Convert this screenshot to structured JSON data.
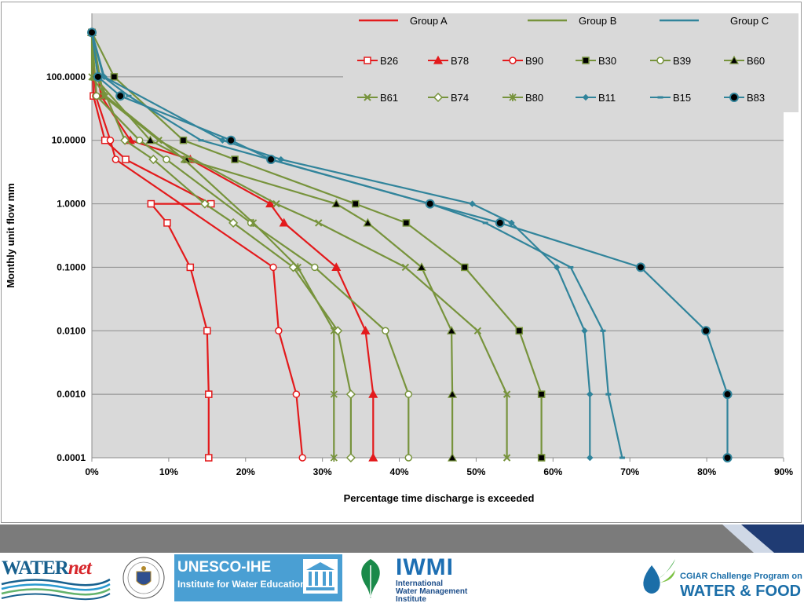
{
  "chart_data": {
    "type": "line",
    "title": "",
    "xlabel": "Percentage time discharge is exceeded",
    "ylabel": "Monthly unit flow mm",
    "xlim": [
      0,
      90
    ],
    "x_ticks": [
      0,
      10,
      20,
      30,
      40,
      50,
      60,
      70,
      80,
      90
    ],
    "x_tick_labels": [
      "0%",
      "10%",
      "20%",
      "30%",
      "40%",
      "50%",
      "60%",
      "70%",
      "80%",
      "90%"
    ],
    "y_scale": "log",
    "ylim": [
      0.0001,
      1000
    ],
    "y_ticks": [
      0.0001,
      0.001,
      0.01,
      0.1,
      1,
      10,
      100
    ],
    "y_tick_labels": [
      "0.0001",
      "0.0010",
      "0.0100",
      "0.1000",
      "1.0000",
      "10.0000",
      "100.0000"
    ],
    "grid": "horizontal",
    "legend_position": "top-right",
    "groups": [
      {
        "name": "Group A",
        "color": "#e31a1c"
      },
      {
        "name": "Group B",
        "color": "#77933c"
      },
      {
        "name": "Group C",
        "color": "#31849b"
      }
    ],
    "series": [
      {
        "name": "B26",
        "group": "Group A",
        "marker": "square-open",
        "color": "#e31a1c",
        "points": [
          [
            0,
            500
          ],
          [
            0.2,
            50
          ],
          [
            1.7,
            10
          ],
          [
            4.4,
            5
          ],
          [
            15.5,
            1
          ],
          [
            7.7,
            1
          ],
          [
            9.8,
            0.5
          ],
          [
            12.8,
            0.1
          ],
          [
            15,
            0.01
          ],
          [
            15.2,
            0.001
          ],
          [
            15.2,
            0.0001
          ]
        ]
      },
      {
        "name": "B78",
        "group": "Group A",
        "marker": "triangle-filled",
        "color": "#e31a1c",
        "points": [
          [
            0,
            500
          ],
          [
            1.2,
            50
          ],
          [
            5,
            10
          ],
          [
            12.8,
            5
          ],
          [
            23.2,
            1
          ],
          [
            25,
            0.5
          ],
          [
            31.8,
            0.1
          ],
          [
            35.6,
            0.01
          ],
          [
            36.6,
            0.001
          ],
          [
            36.6,
            0.0001
          ]
        ]
      },
      {
        "name": "B90",
        "group": "Group A",
        "marker": "circle-open",
        "color": "#e31a1c",
        "points": [
          [
            0,
            500
          ],
          [
            0.5,
            50
          ],
          [
            2.4,
            10
          ],
          [
            3.1,
            5
          ],
          [
            23.6,
            0.1
          ],
          [
            24.3,
            0.01
          ],
          [
            26.6,
            0.001
          ],
          [
            27.4,
            0.0001
          ]
        ]
      },
      {
        "name": "B30",
        "group": "Group B",
        "marker": "square-filled",
        "color": "#77933c",
        "points": [
          [
            0,
            500
          ],
          [
            2.9,
            100
          ],
          [
            11.9,
            10
          ],
          [
            18.6,
            5
          ],
          [
            34.3,
            1
          ],
          [
            40.9,
            0.5
          ],
          [
            48.5,
            0.1
          ],
          [
            55.6,
            0.01
          ],
          [
            58.5,
            0.001
          ],
          [
            58.5,
            0.0001
          ]
        ]
      },
      {
        "name": "B39",
        "group": "Group B",
        "marker": "circle-open",
        "color": "#77933c",
        "points": [
          [
            0,
            500
          ],
          [
            0.6,
            50
          ],
          [
            6.2,
            10
          ],
          [
            9.7,
            5
          ],
          [
            20.7,
            0.5
          ],
          [
            29,
            0.1
          ],
          [
            38.2,
            0.01
          ],
          [
            41.2,
            0.001
          ],
          [
            41.2,
            0.0001
          ]
        ]
      },
      {
        "name": "B60",
        "group": "Group B",
        "marker": "triangle-filled",
        "color": "#77933c",
        "points": [
          [
            0,
            500
          ],
          [
            0.3,
            100
          ],
          [
            7.6,
            10
          ],
          [
            12.3,
            5
          ],
          [
            31.8,
            1
          ],
          [
            35.9,
            0.5
          ],
          [
            42.9,
            0.1
          ],
          [
            46.8,
            0.01
          ],
          [
            46.9,
            0.001
          ],
          [
            46.9,
            0.0001
          ]
        ]
      },
      {
        "name": "B61",
        "group": "Group B",
        "marker": "x",
        "color": "#77933c",
        "points": [
          [
            0,
            500
          ],
          [
            1.5,
            50
          ],
          [
            8.7,
            10
          ],
          [
            24,
            1
          ],
          [
            29.5,
            0.5
          ],
          [
            40.8,
            0.1
          ],
          [
            50.2,
            0.01
          ],
          [
            54,
            0.001
          ],
          [
            54,
            0.0001
          ]
        ]
      },
      {
        "name": "B74",
        "group": "Group B",
        "marker": "diamond-open",
        "color": "#77933c",
        "points": [
          [
            0,
            500
          ],
          [
            0.8,
            100
          ],
          [
            4.3,
            10
          ],
          [
            8,
            5
          ],
          [
            14.7,
            1
          ],
          [
            18.4,
            0.5
          ],
          [
            26.2,
            0.1
          ],
          [
            32,
            0.01
          ],
          [
            33.7,
            0.001
          ],
          [
            33.7,
            0.0001
          ]
        ]
      },
      {
        "name": "B80",
        "group": "Group B",
        "marker": "asterisk",
        "color": "#77933c",
        "points": [
          [
            0,
            500
          ],
          [
            0,
            100
          ],
          [
            1.8,
            50
          ],
          [
            12,
            5
          ],
          [
            21,
            0.5
          ],
          [
            26.8,
            0.1
          ],
          [
            31.5,
            0.01
          ],
          [
            31.5,
            0.001
          ],
          [
            31.5,
            0.0001
          ]
        ]
      },
      {
        "name": "B11",
        "group": "Group C",
        "marker": "diamond-small",
        "color": "#31849b",
        "points": [
          [
            0,
            500
          ],
          [
            1.6,
            100
          ],
          [
            17,
            10
          ],
          [
            24.6,
            5
          ],
          [
            49.5,
            1
          ],
          [
            54.6,
            0.5
          ],
          [
            60.5,
            0.1
          ],
          [
            64.1,
            0.01
          ],
          [
            64.8,
            0.001
          ],
          [
            64.8,
            0.0001
          ]
        ]
      },
      {
        "name": "B15",
        "group": "Group C",
        "marker": "dash",
        "color": "#31849b",
        "points": [
          [
            0,
            500
          ],
          [
            1.5,
            100
          ],
          [
            4.8,
            50
          ],
          [
            14.2,
            10
          ],
          [
            44,
            1
          ],
          [
            51.2,
            0.5
          ],
          [
            62.3,
            0.1
          ],
          [
            66.5,
            0.01
          ],
          [
            67.2,
            0.001
          ],
          [
            69,
            0.0001
          ]
        ]
      },
      {
        "name": "B83",
        "group": "Group C",
        "marker": "circle-filled",
        "color": "#31849b",
        "points": [
          [
            0,
            500
          ],
          [
            0.8,
            100
          ],
          [
            3.7,
            50
          ],
          [
            18.1,
            10
          ],
          [
            23.3,
            5
          ],
          [
            44,
            1
          ],
          [
            53.1,
            0.5
          ],
          [
            71.4,
            0.1
          ],
          [
            79.9,
            0.01
          ],
          [
            82.7,
            0.001
          ],
          [
            82.7,
            0.0001
          ]
        ]
      }
    ]
  },
  "footer": {
    "logos": {
      "waternet_a": "WATER",
      "waternet_b": "net",
      "unesco_title": "UNESCO-IHE",
      "unesco_sub": "Institute for Water Education",
      "iwmi_mark": "IWMI",
      "iwmi_line1": "International",
      "iwmi_line2": "Water Management",
      "iwmi_line3": "Institute",
      "cgiar_title": "CGIAR Challenge Program on",
      "cgiar_big": "WATER & FOOD"
    },
    "colors": {
      "band": "#7b7b7b",
      "corner_dark": "#1f3b73",
      "corner_light": "#cfd8e6"
    }
  }
}
